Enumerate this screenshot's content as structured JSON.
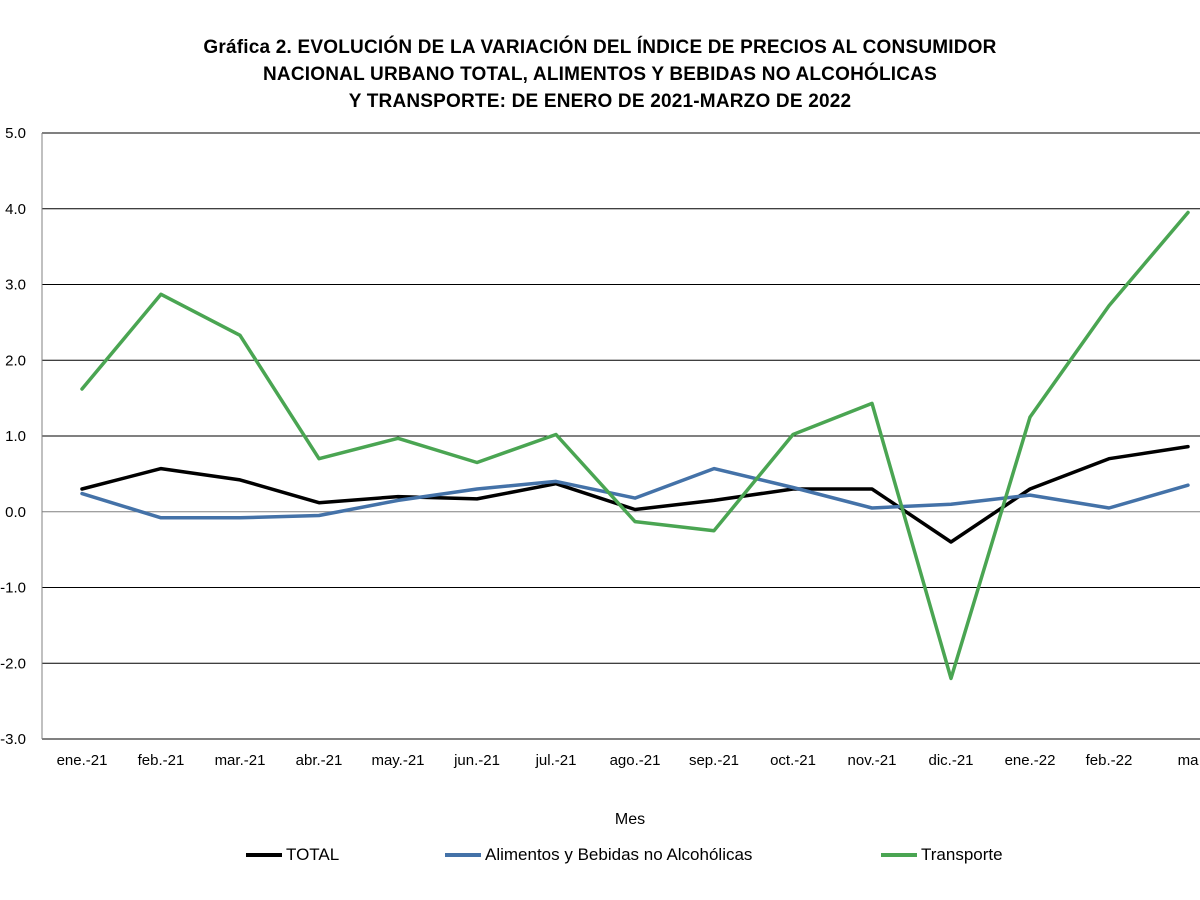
{
  "chart_data": {
    "type": "line",
    "title_lines": [
      "Gráfica 2. EVOLUCIÓN DE LA VARIACIÓN DEL ÍNDICE DE PRECIOS AL CONSUMIDOR",
      "NACIONAL URBANO TOTAL, ALIMENTOS Y BEBIDAS NO ALCOHÓLICAS",
      "Y TRANSPORTE: DE ENERO DE 2021-MARZO DE 2022"
    ],
    "xlabel": "Mes",
    "ylabel": "",
    "ylim": [
      -3.0,
      5.0
    ],
    "yticks": [
      "5.0",
      "4.0",
      "3.0",
      "2.0",
      "1.0",
      "0.0",
      "-1.0",
      "-2.0",
      "-3.0"
    ],
    "categories": [
      "ene.-21",
      "feb.-21",
      "mar.-21",
      "abr.-21",
      "may.-21",
      "jun.-21",
      "jul.-21",
      "ago.-21",
      "sep.-21",
      "oct.-21",
      "nov.-21",
      "dic.-21",
      "ene.-22",
      "feb.-22",
      "ma"
    ],
    "grid": true,
    "legend_position": "bottom",
    "series": [
      {
        "name": "TOTAL",
        "color": "#000000",
        "values": [
          0.3,
          0.57,
          0.42,
          0.12,
          0.2,
          0.17,
          0.37,
          0.03,
          0.15,
          0.3,
          0.3,
          -0.4,
          0.3,
          0.7,
          0.86
        ]
      },
      {
        "name": "Alimentos y Bebidas no Alcohólicas",
        "color": "#4472a8",
        "values": [
          0.24,
          -0.08,
          -0.08,
          -0.05,
          0.15,
          0.3,
          0.4,
          0.18,
          0.57,
          0.32,
          0.05,
          0.1,
          0.22,
          0.05,
          0.35
        ]
      },
      {
        "name": "Transporte",
        "color": "#4aa552",
        "values": [
          1.62,
          2.87,
          2.33,
          0.7,
          0.97,
          0.65,
          1.02,
          -0.13,
          -0.25,
          1.02,
          1.43,
          -2.2,
          1.25,
          2.72,
          3.95
        ]
      }
    ]
  }
}
